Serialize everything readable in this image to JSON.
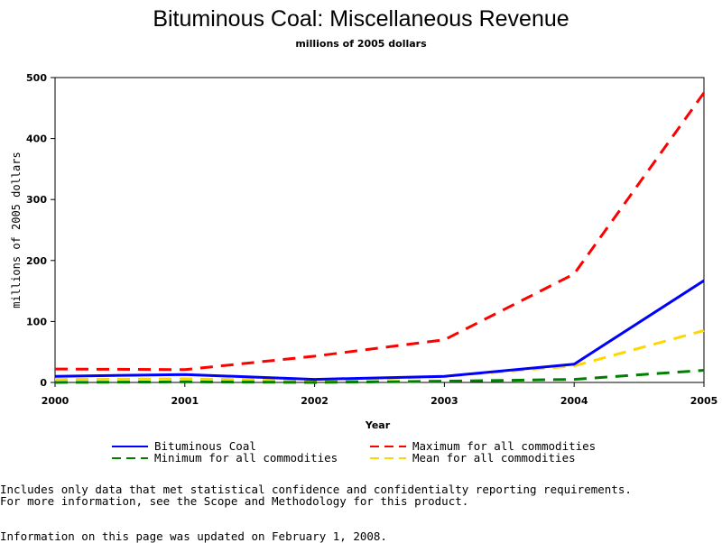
{
  "chart_data": {
    "type": "line",
    "title": "Bituminous Coal: Miscellaneous Revenue",
    "subtitle": "millions of 2005 dollars",
    "xlabel": "Year",
    "ylabel": "millions of 2005 dollars",
    "x": [
      2000,
      2001,
      2002,
      2003,
      2004,
      2005
    ],
    "xlim": [
      2000,
      2005
    ],
    "ylim": [
      0,
      500
    ],
    "yticks": [
      0,
      100,
      200,
      300,
      400,
      500
    ],
    "grid": false,
    "legend_position": "bottom",
    "series": [
      {
        "name": "Bituminous Coal",
        "color": "#0000ff",
        "style": "solid",
        "values": [
          10,
          13,
          5,
          10,
          30,
          167
        ]
      },
      {
        "name": "Maximum for all commodities",
        "color": "#ff0000",
        "style": "dashed",
        "values": [
          22,
          21,
          43,
          70,
          178,
          475
        ]
      },
      {
        "name": "Minimum for all commodities",
        "color": "#008000",
        "style": "dashed",
        "values": [
          0,
          1,
          0,
          2,
          5,
          20
        ]
      },
      {
        "name": "Mean for all commodities",
        "color": "#ffd700",
        "style": "dashed",
        "values": [
          5,
          6,
          3,
          10,
          27,
          85
        ]
      }
    ]
  },
  "notes": {
    "line1": "Includes only data that met statistical confidence and confidentialty reporting requirements.",
    "line2": "For more information, see the Scope and Methodology for this product.",
    "updated": "Information on this page was updated on February 1, 2008."
  }
}
